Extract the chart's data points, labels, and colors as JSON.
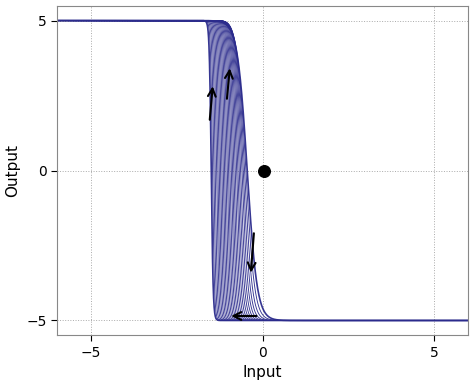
{
  "xlim": [
    -6,
    6
  ],
  "ylim": [
    -5.5,
    5.5
  ],
  "xticks": [
    -5,
    0,
    5
  ],
  "yticks": [
    -5,
    0,
    5
  ],
  "xlabel": "Input",
  "ylabel": "Output",
  "line_color": "#2B2B8C",
  "background_color": "#ffffff",
  "dot_x": 0.05,
  "dot_y": 0.0,
  "dot_size": 70,
  "num_curves": 28,
  "arrow_color": "black",
  "grid_color": "#aaaaaa",
  "shift_min": -1.5,
  "shift_max": -0.45,
  "steep_min": 3.5,
  "steep_max": 18.0
}
